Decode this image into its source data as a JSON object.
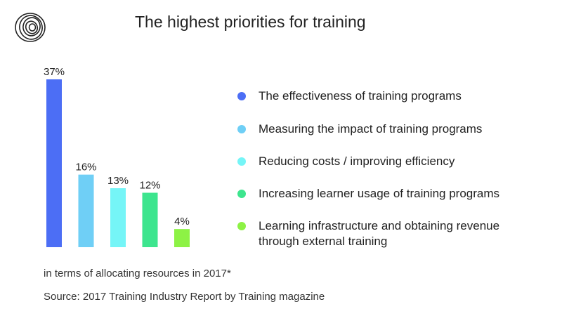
{
  "colors": {
    "series": [
      "#4c6ef5",
      "#6fcff6",
      "#75f5f7",
      "#3de58e",
      "#8df245"
    ]
  },
  "icon": "spiral-logo-icon",
  "chart_data": {
    "type": "bar",
    "title": "The highest priorities for training",
    "categories": [
      "The effectiveness of training programs",
      "Measuring the impact of training programs",
      "Reducing costs / improving efficiency",
      "Increasing learner usage of training programs",
      "Learning infrastructure and obtaining revenue through external training"
    ],
    "values": [
      37,
      16,
      13,
      12,
      4
    ],
    "value_labels": [
      "37%",
      "16%",
      "13%",
      "12%",
      "4%"
    ],
    "unit": "%",
    "ylim": [
      0,
      37
    ],
    "grid": false,
    "legend_position": "right"
  },
  "footnote": "in terms of allocating resources in 2017*",
  "source": "Source: 2017 Training Industry Report by Training magazine"
}
